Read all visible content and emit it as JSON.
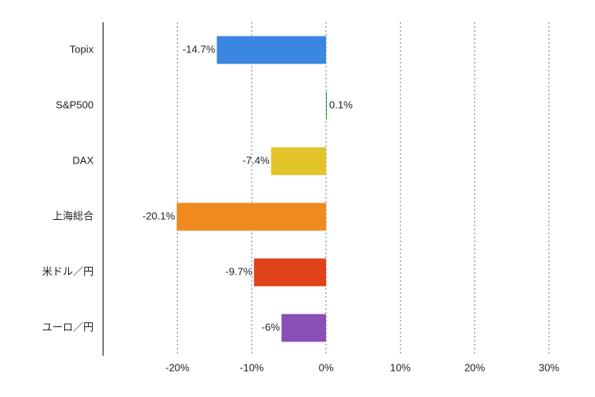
{
  "chart_data": {
    "type": "hbar",
    "categories": [
      "Topix",
      "S&P500",
      "DAX",
      "上海総合",
      "米ドル／円",
      "ユーロ／円"
    ],
    "values": [
      -14.7,
      0.1,
      -7.4,
      -20.1,
      -9.7,
      -6
    ],
    "value_labels": [
      "-14.7%",
      "0.1%",
      "-7.4%",
      "-20.1%",
      "-9.7%",
      "-6%"
    ],
    "colors": [
      "#3a86e0",
      "#2e9a3a",
      "#e2c42a",
      "#f0891e",
      "#e0421a",
      "#8a50b8"
    ],
    "xlim": [
      -30,
      30
    ],
    "xticks": [
      {
        "value": -20,
        "label": "-20%"
      },
      {
        "value": -10,
        "label": "-10%"
      },
      {
        "value": 0,
        "label": "0%"
      },
      {
        "value": 10,
        "label": "10%"
      },
      {
        "value": 20,
        "label": "20%"
      },
      {
        "value": 30,
        "label": "30%"
      }
    ],
    "grid": true
  }
}
